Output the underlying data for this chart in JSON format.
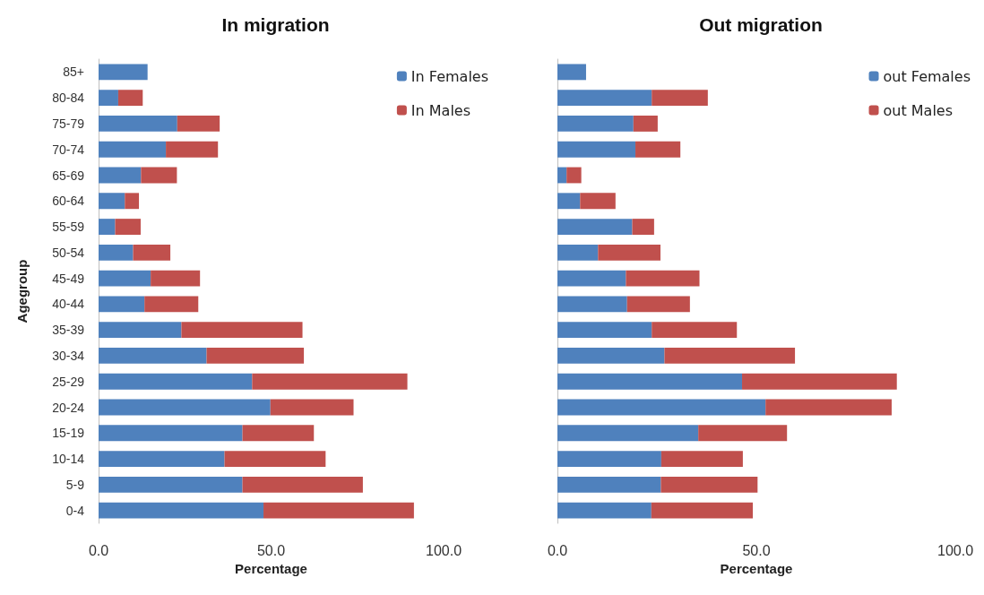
{
  "chart_data": [
    {
      "type": "bar",
      "orientation": "horizontal",
      "stacked": true,
      "title": "In migration",
      "xlabel": "Percentage",
      "ylabel": "Agegroup",
      "categories": [
        "85+",
        "80-84",
        "75-79",
        "70-74",
        "65-69",
        "60-64",
        "55-59",
        "50-54",
        "45-49",
        "40-44",
        "35-39",
        "30-34",
        "25-29",
        "20-24",
        "15-19",
        "10-14",
        "5-9",
        "0-4"
      ],
      "series": [
        {
          "name": "In Females",
          "color": "#4f81bd",
          "values": [
            14.2,
            5.7,
            22.8,
            19.5,
            12.3,
            7.6,
            4.8,
            10.0,
            15.1,
            13.3,
            24.0,
            31.3,
            44.5,
            49.8,
            41.7,
            36.5,
            41.7,
            47.8
          ]
        },
        {
          "name": "In Males",
          "color": "#c0504d",
          "values": [
            null,
            7.1,
            12.3,
            15.1,
            10.4,
            4.1,
            7.4,
            10.8,
            14.3,
            15.6,
            35.1,
            28.2,
            45.0,
            24.1,
            20.7,
            29.3,
            34.9,
            43.6
          ]
        }
      ],
      "xlim": [
        0,
        100
      ],
      "xticks": [
        {
          "value": 0,
          "label": "0.0"
        },
        {
          "value": 50,
          "label": "50.0"
        },
        {
          "value": 100,
          "label": "100.0"
        }
      ],
      "grid": false,
      "legend": "top right"
    },
    {
      "type": "bar",
      "orientation": "horizontal",
      "stacked": true,
      "title": "Out migration",
      "xlabel": "Percentage",
      "categories": [
        null,
        null,
        null,
        null,
        null,
        null,
        null,
        null,
        null,
        null,
        null,
        null,
        null,
        null,
        null,
        null,
        null,
        null
      ],
      "series": [
        {
          "name": "out Females",
          "color": "#4f81bd",
          "values": [
            7.2,
            23.7,
            19.1,
            19.6,
            2.3,
            5.7,
            18.8,
            10.2,
            17.2,
            17.5,
            23.7,
            26.9,
            46.4,
            52.3,
            35.4,
            26.1,
            26.0,
            23.6
          ]
        },
        {
          "name": "out Males",
          "color": "#c0504d",
          "values": [
            null,
            14.1,
            6.1,
            11.3,
            3.7,
            8.9,
            5.5,
            15.7,
            18.5,
            15.8,
            21.4,
            32.8,
            38.9,
            31.7,
            22.3,
            20.5,
            24.3,
            25.5
          ]
        }
      ],
      "xlim": [
        0,
        100
      ],
      "xticks": [
        {
          "value": 0,
          "label": "0.0"
        },
        {
          "value": 50,
          "label": "50.0"
        },
        {
          "value": 100,
          "label": "100.0"
        }
      ],
      "grid": false,
      "legend": "top right"
    }
  ]
}
